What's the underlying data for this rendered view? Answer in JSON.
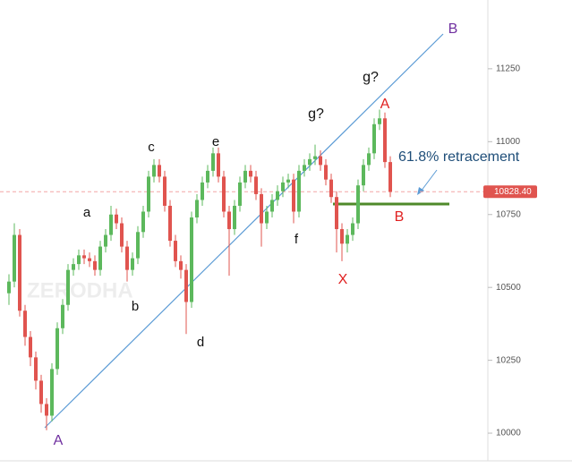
{
  "chart_data": {
    "type": "candlestick",
    "up_color": "#5cb85c",
    "down_color": "#e0544f",
    "open": [
      10480,
      10520,
      10680,
      10420,
      10330,
      10260,
      10180,
      10100,
      10060,
      10220,
      10360,
      10440,
      10560,
      10580,
      10610,
      10600,
      10590,
      10560,
      10640,
      10680,
      10750,
      10720,
      10640,
      10560,
      10600,
      10690,
      10760,
      10880,
      10920,
      10880,
      10780,
      10660,
      10590,
      10560,
      10450,
      10740,
      10800,
      10860,
      10900,
      10960,
      10880,
      10760,
      10700,
      10780,
      10860,
      10900,
      10880,
      10820,
      10720,
      10760,
      10800,
      10830,
      10860,
      10870,
      10760,
      10900,
      10920,
      10940,
      10950,
      10920,
      10870,
      10810,
      10700,
      10650,
      10680,
      10720,
      10850,
      10920,
      10960,
      11060,
      11080,
      10930
    ],
    "high": [
      10545,
      10720,
      10700,
      10440,
      10350,
      10280,
      10200,
      10120,
      10240,
      10380,
      10460,
      10580,
      10600,
      10630,
      10630,
      10620,
      10610,
      10660,
      10700,
      10780,
      10770,
      10740,
      10660,
      10620,
      10710,
      10780,
      10900,
      10940,
      10940,
      10900,
      10800,
      10680,
      10610,
      10580,
      10760,
      10820,
      10880,
      10920,
      10980,
      10980,
      10900,
      10780,
      10800,
      10880,
      10920,
      10920,
      10900,
      10840,
      10780,
      10820,
      10850,
      10880,
      10890,
      10890,
      10920,
      10940,
      10960,
      10990,
      10970,
      10940,
      10890,
      10830,
      10720,
      10700,
      10740,
      10870,
      10940,
      10980,
      11080,
      11110,
      11100,
      10950
    ],
    "low": [
      10440,
      10500,
      10400,
      10300,
      10230,
      10150,
      10070,
      10010,
      10040,
      10200,
      10340,
      10420,
      10540,
      10560,
      10580,
      10570,
      10540,
      10540,
      10620,
      10660,
      10700,
      10620,
      10520,
      10540,
      10580,
      10670,
      10740,
      10860,
      10860,
      10760,
      10640,
      10570,
      10530,
      10340,
      10430,
      10720,
      10780,
      10840,
      10880,
      10860,
      10740,
      10540,
      10680,
      10760,
      10840,
      10860,
      10800,
      10640,
      10700,
      10740,
      10780,
      10810,
      10840,
      10720,
      10740,
      10880,
      10900,
      10920,
      10900,
      10850,
      10790,
      10620,
      10590,
      10620,
      10660,
      10700,
      10830,
      10900,
      10940,
      11040,
      10910,
      10810
    ],
    "close": [
      10520,
      10680,
      10420,
      10330,
      10260,
      10180,
      10100,
      10060,
      10220,
      10360,
      10440,
      10560,
      10580,
      10610,
      10600,
      10590,
      10560,
      10640,
      10680,
      10750,
      10720,
      10640,
      10560,
      10600,
      10690,
      10760,
      10880,
      10920,
      10880,
      10780,
      10660,
      10590,
      10560,
      10450,
      10740,
      10800,
      10860,
      10900,
      10960,
      10880,
      10760,
      10700,
      10780,
      10860,
      10900,
      10880,
      10820,
      10720,
      10760,
      10800,
      10830,
      10860,
      10870,
      10760,
      10900,
      10920,
      10940,
      10950,
      10920,
      10870,
      10810,
      10700,
      10650,
      10680,
      10720,
      10850,
      10920,
      10960,
      11060,
      11080,
      10930,
      10828
    ],
    "ylim": [
      9905,
      11486
    ],
    "yticks": [
      10000,
      10250,
      10500,
      10750,
      11000,
      11250
    ],
    "grid": false,
    "current_price": {
      "value": 10828.4,
      "label": "10828.40"
    },
    "watermark": "ZERODHA",
    "annotations": [
      "a",
      "b",
      "c",
      "d",
      "e",
      "f",
      "g?",
      "g?",
      "A",
      "A",
      "B",
      "B",
      "X",
      "61.8% retracement"
    ]
  }
}
